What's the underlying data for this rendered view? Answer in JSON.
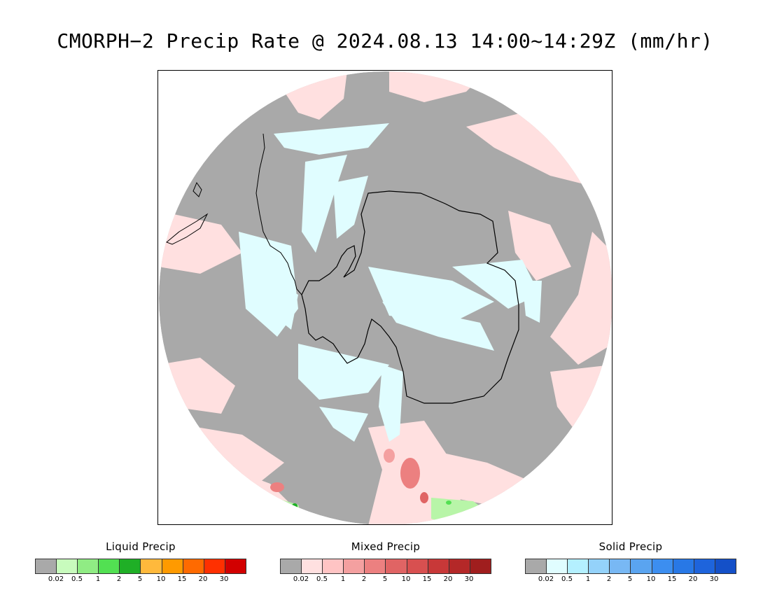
{
  "title": "CMORPH−2 Precip Rate @ 2024.08.13 14:00~14:29Z (mm/hr)",
  "map": {
    "background_color": "#a9a9a9",
    "mixed_light_color": "#ffe0e0",
    "solid_light_color": "#e0fdff",
    "liquid_light_color": "#b8f5a8",
    "coastline_color": "#000000"
  },
  "legends": [
    {
      "id": "liquid",
      "title": "Liquid Precip",
      "colors": [
        "#a9a9a9",
        "#c8fbbd",
        "#90ec84",
        "#52e052",
        "#1faf26",
        "#ffb93c",
        "#ff9a00",
        "#ff6a00",
        "#ff3000",
        "#d20000"
      ],
      "ticks": [
        "0.02",
        "0.5",
        "1",
        "2",
        "5",
        "10",
        "15",
        "20",
        "30"
      ]
    },
    {
      "id": "mixed",
      "title": "Mixed Precip",
      "colors": [
        "#a9a9a9",
        "#ffe0e0",
        "#ffc4c4",
        "#f4a0a0",
        "#ec8080",
        "#e06464",
        "#d85050",
        "#c83838",
        "#b42828",
        "#a01e1e"
      ],
      "ticks": [
        "0.02",
        "0.5",
        "1",
        "2",
        "5",
        "10",
        "15",
        "20",
        "30"
      ]
    },
    {
      "id": "solid",
      "title": "Solid Precip",
      "colors": [
        "#a9a9a9",
        "#e0fdff",
        "#b4f0ff",
        "#94d2fa",
        "#78b8f4",
        "#5aa4f0",
        "#3c8ef0",
        "#2878e6",
        "#1e64dc",
        "#1450c8"
      ],
      "ticks": [
        "0.02",
        "0.5",
        "1",
        "2",
        "5",
        "10",
        "15",
        "20",
        "30"
      ]
    }
  ]
}
